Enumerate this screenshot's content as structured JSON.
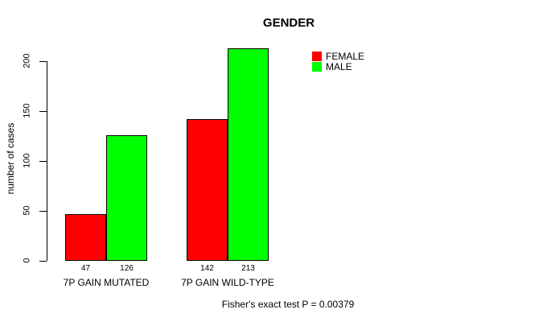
{
  "chart_data": {
    "type": "bar",
    "title": "GENDER",
    "ylabel": "number of cases",
    "xlabel": "",
    "categories": [
      "7P GAIN MUTATED",
      "7P GAIN WILD-TYPE"
    ],
    "series": [
      {
        "name": "FEMALE",
        "color": "#ff0000",
        "values": [
          47,
          142
        ]
      },
      {
        "name": "MALE",
        "color": "#00ff00",
        "values": [
          126,
          213
        ]
      }
    ],
    "bar_value_labels": [
      [
        47,
        126
      ],
      [
        142,
        213
      ]
    ],
    "yticks": [
      0,
      50,
      100,
      150,
      200
    ],
    "ylim": [
      0,
      215
    ],
    "grid": false,
    "legend_position": "top-right",
    "annotation": "Fisher's exact test P = 0.00379"
  },
  "legend": {
    "items": [
      {
        "label": "FEMALE",
        "color": "#ff0000"
      },
      {
        "label": "MALE",
        "color": "#00ff00"
      }
    ]
  }
}
